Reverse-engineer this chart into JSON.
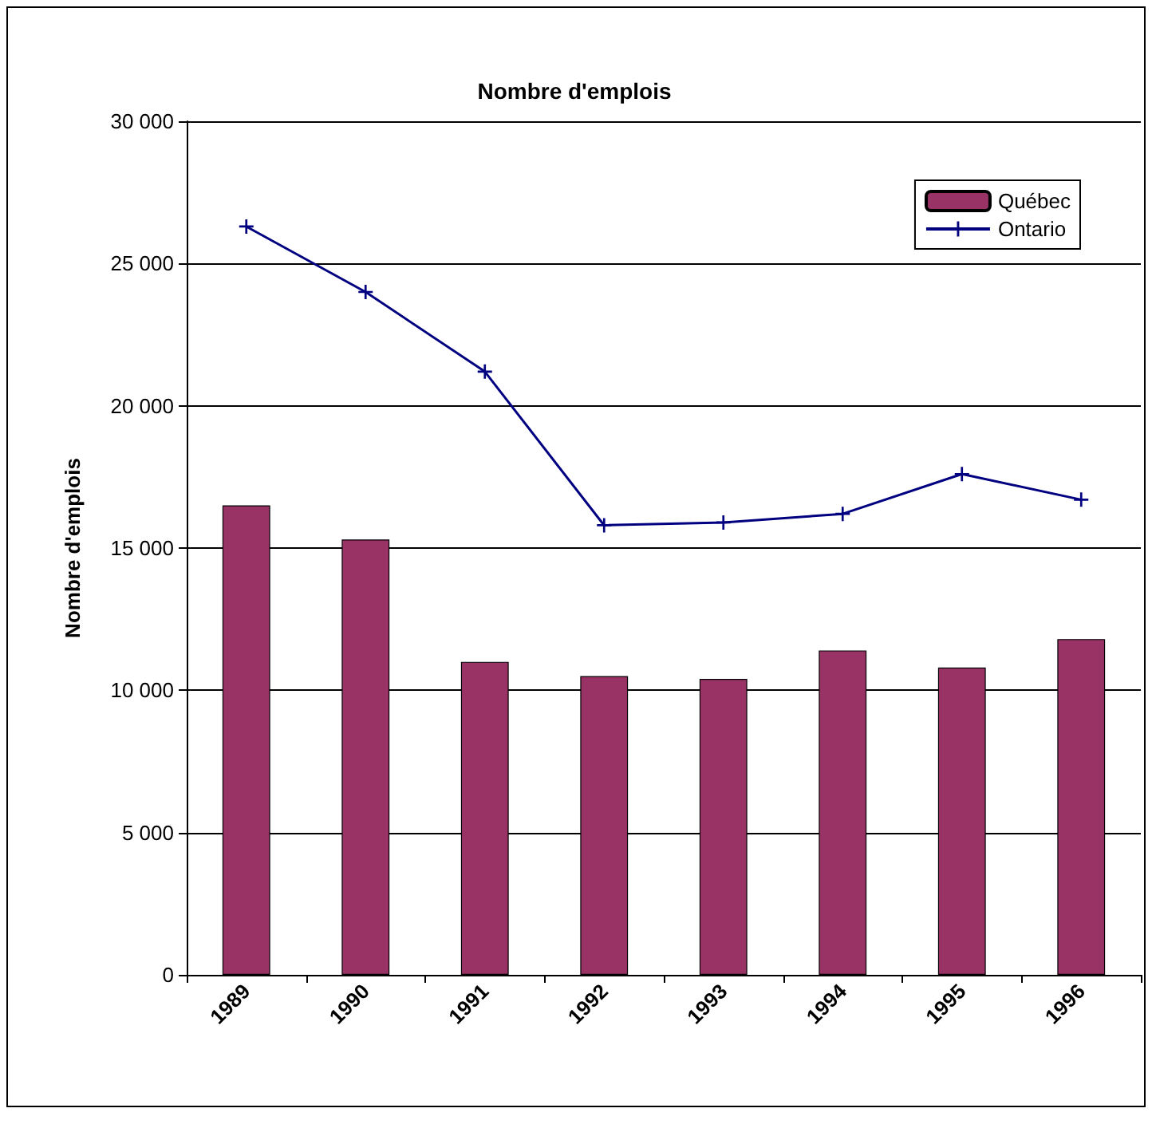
{
  "chart_data": {
    "type": "bar",
    "title": "Nombre d'emplois",
    "ylabel": "Nombre d'emplois",
    "categories": [
      "1989",
      "1990",
      "1991",
      "1992",
      "1993",
      "1994",
      "1995",
      "1996"
    ],
    "series": [
      {
        "name": "Québec",
        "color": "#993366",
        "values": [
          16500,
          15300,
          11000,
          10500,
          10400,
          11400,
          10800,
          11800
        ]
      },
      {
        "name": "Ontario",
        "type": "line",
        "color": "#000080",
        "marker": "cross",
        "values": [
          26300,
          24000,
          21200,
          15800,
          15900,
          16200,
          17600,
          16700
        ]
      }
    ],
    "ylim": [
      0,
      30000
    ],
    "yticks": [
      {
        "value": 0,
        "label": "0"
      },
      {
        "value": 5000,
        "label": "5 000"
      },
      {
        "value": 10000,
        "label": "10 000"
      },
      {
        "value": 15000,
        "label": "15 000"
      },
      {
        "value": 20000,
        "label": "20 000"
      },
      {
        "value": 25000,
        "label": "25 000"
      },
      {
        "value": 30000,
        "label": "30 000"
      }
    ],
    "grid": "y",
    "legend": "top right"
  }
}
